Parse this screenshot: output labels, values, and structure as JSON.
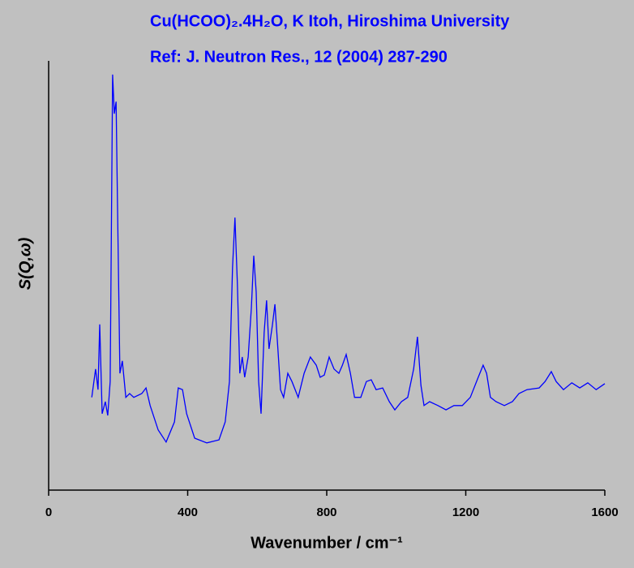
{
  "chart_data": {
    "type": "line",
    "title": "Cu(HCOO)₂.4H₂O, K Itoh, Hiroshima University",
    "subtitle": "Ref: J. Neutron Res., 12 (2004) 287-290",
    "xlabel": "Wavenumber / cm⁻¹",
    "ylabel": "S(Q,ω)",
    "xlim": [
      0,
      1600
    ],
    "xticks": [
      0,
      400,
      800,
      1200,
      1600
    ],
    "ylim": [
      0,
      100
    ],
    "series": [
      {
        "color": "#0000ff",
        "x": [
          124,
          135,
          142,
          147,
          154,
          163,
          170,
          177,
          184,
          189,
          194,
          198,
          205,
          212,
          222,
          233,
          245,
          268,
          280,
          292,
          315,
          338,
          362,
          373,
          385,
          397,
          420,
          455,
          490,
          508,
          520,
          529,
          536,
          543,
          550,
          557,
          564,
          574,
          583,
          590,
          597,
          604,
          611,
          620,
          627,
          634,
          644,
          651,
          658,
          667,
          676,
          688,
          700,
          718,
          735,
          753,
          770,
          781,
          793,
          807,
          821,
          835,
          845,
          856,
          868,
          880,
          898,
          914,
          928,
          942,
          961,
          980,
          996,
          1015,
          1033,
          1050,
          1061,
          1071,
          1080,
          1096,
          1120,
          1143,
          1166,
          1190,
          1213,
          1236,
          1250,
          1260,
          1271,
          1287,
          1311,
          1334,
          1353,
          1376,
          1411,
          1428,
          1446,
          1460,
          1481,
          1505,
          1528,
          1551,
          1575,
          1600
        ],
        "values": [
          21.6,
          28.2,
          23.4,
          38.6,
          17.8,
          20.6,
          17.4,
          25.3,
          96.8,
          87.7,
          90.5,
          66.9,
          27.2,
          30.1,
          21.6,
          22.5,
          21.6,
          22.5,
          23.8,
          19.7,
          14.0,
          11.2,
          15.9,
          23.8,
          23.4,
          17.8,
          12.1,
          11.0,
          11.7,
          15.9,
          25.3,
          51.8,
          63.5,
          48.0,
          27.2,
          31.0,
          26.3,
          31.0,
          42.3,
          54.6,
          46.1,
          25.3,
          17.8,
          36.7,
          44.2,
          32.9,
          38.6,
          43.3,
          34.8,
          23.4,
          21.6,
          27.2,
          25.3,
          21.6,
          27.2,
          31.0,
          29.1,
          26.3,
          26.8,
          31.0,
          28.2,
          27.2,
          29.1,
          31.6,
          27.2,
          21.6,
          21.6,
          25.3,
          25.7,
          23.4,
          23.8,
          20.6,
          18.7,
          20.6,
          21.6,
          28.2,
          35.7,
          24.4,
          19.7,
          20.6,
          19.7,
          18.7,
          19.7,
          19.7,
          21.6,
          26.3,
          29.1,
          27.2,
          21.6,
          20.6,
          19.7,
          20.6,
          22.5,
          23.4,
          23.8,
          25.3,
          27.6,
          25.3,
          23.4,
          25.0,
          23.8,
          25.0,
          23.4,
          24.8
        ]
      }
    ]
  }
}
